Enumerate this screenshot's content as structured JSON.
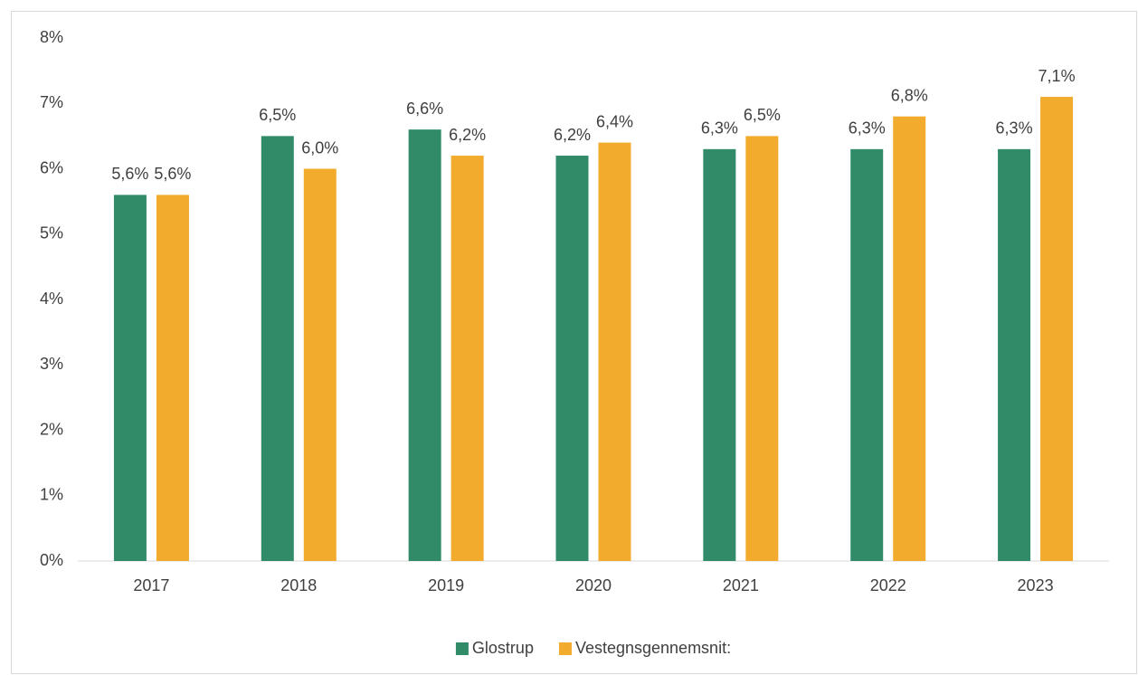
{
  "chart_data": {
    "type": "bar",
    "categories": [
      "2017",
      "2018",
      "2019",
      "2020",
      "2021",
      "2022",
      "2023"
    ],
    "series": [
      {
        "name": "Glostrup",
        "color": "#318a68",
        "values": [
          5.6,
          6.5,
          6.6,
          6.2,
          6.3,
          6.3,
          6.3
        ],
        "value_labels": [
          "5,6%",
          "6,5%",
          "6,6%",
          "6,2%",
          "6,3%",
          "6,3%",
          "6,3%"
        ]
      },
      {
        "name": "Vestegnsgennemsnit:",
        "color": "#f2ab2d",
        "values": [
          5.6,
          6.0,
          6.2,
          6.4,
          6.5,
          6.8,
          7.1
        ],
        "value_labels": [
          "5,6%",
          "6,0%",
          "6,2%",
          "6,4%",
          "6,5%",
          "6,8%",
          "7,1%"
        ]
      }
    ],
    "ylim": [
      0,
      8
    ],
    "yticks": [
      {
        "value": 0,
        "label": "0%"
      },
      {
        "value": 1,
        "label": "1%"
      },
      {
        "value": 2,
        "label": "2%"
      },
      {
        "value": 3,
        "label": "3%"
      },
      {
        "value": 4,
        "label": "4%"
      },
      {
        "value": 5,
        "label": "5%"
      },
      {
        "value": 6,
        "label": "6%"
      },
      {
        "value": 7,
        "label": "7%"
      },
      {
        "value": 8,
        "label": "8%"
      }
    ],
    "grid": false,
    "legend": "bottom"
  }
}
